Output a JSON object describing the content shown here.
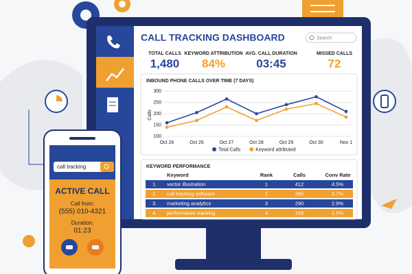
{
  "dashboard": {
    "title": "CALL TRACKING DASHBOARD",
    "search_placeholder": "Search",
    "kpis": [
      {
        "label": "TOTAL CALLS",
        "value": "1,480"
      },
      {
        "label": "KEYWORD ATTRIBUTION",
        "value": "84%"
      },
      {
        "label": "AVG. CALL DURATION",
        "value": "03:45"
      },
      {
        "label": "MISSED CALLS",
        "value": "72"
      }
    ]
  },
  "chart_data": {
    "type": "line",
    "title": "INBOUND PHONE CALLS OVER TIME (7 DAYS)",
    "y_label": "Calls",
    "categories": [
      "Oct 26",
      "Oct 26",
      "Oct 27",
      "Oct 28",
      "Oct 29",
      "Oct 30",
      "Nov 1"
    ],
    "series": [
      {
        "name": "Total Calls",
        "color": "#27479b",
        "values": [
          160,
          205,
          265,
          200,
          240,
          275,
          210
        ]
      },
      {
        "name": "Keyword attributed",
        "color": "#f0a030",
        "values": [
          140,
          170,
          230,
          170,
          220,
          245,
          185
        ]
      }
    ],
    "ylim": [
      100,
      300
    ],
    "yticks": [
      100,
      150,
      200,
      250,
      300
    ],
    "legend": "bottom"
  },
  "table": {
    "title": "KEYWORD PERFORMANCE",
    "columns": [
      "Keyword",
      "Rank",
      "Calls",
      "Conv Rate"
    ],
    "rows": [
      [
        "1.",
        "vector illustration",
        "1",
        "412",
        "4.5%"
      ],
      [
        "2.",
        "call tracking software",
        "2",
        "385",
        "3.7%"
      ],
      [
        "3.",
        "marketing analytics",
        "3",
        "290",
        "2.9%"
      ],
      [
        "4.",
        "performance tracking",
        "4",
        "155",
        "1.5%"
      ]
    ]
  },
  "phone": {
    "search": "call tracking",
    "status": "ACTIVE CALL",
    "from_label": "Call from:",
    "number": "(555) 010-4321",
    "duration_label": "Duration:",
    "duration": "01:23"
  }
}
